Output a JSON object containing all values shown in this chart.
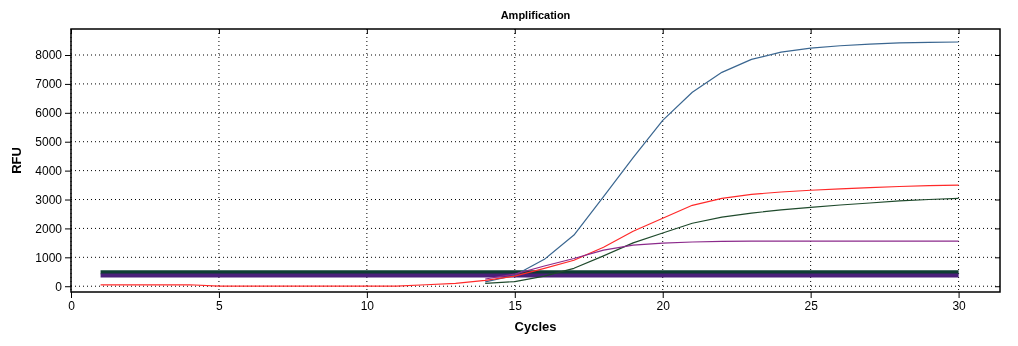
{
  "chart_data": {
    "type": "line",
    "title": "Amplification",
    "xlabel": "Cycles",
    "ylabel": "RFU",
    "x": [
      1,
      2,
      3,
      4,
      5,
      6,
      7,
      8,
      9,
      10,
      11,
      12,
      13,
      14,
      15,
      16,
      17,
      18,
      19,
      20,
      21,
      22,
      23,
      24,
      25,
      26,
      27,
      28,
      29,
      30
    ],
    "xlim": [
      0,
      31.4
    ],
    "ylim": [
      -200,
      8900
    ],
    "xticks": [
      0,
      5,
      10,
      15,
      20,
      25,
      30
    ],
    "yticks": [
      0,
      1000,
      2000,
      3000,
      4000,
      5000,
      6000,
      7000,
      8000
    ],
    "grid": true,
    "marker": "none",
    "line_style": "solid",
    "series": [
      {
        "color": "#3a6690",
        "values": [
          null,
          null,
          null,
          null,
          null,
          null,
          null,
          null,
          null,
          null,
          null,
          null,
          null,
          150,
          380,
          930,
          1770,
          3100,
          4450,
          5740,
          6710,
          7400,
          7850,
          8100,
          8240,
          8320,
          8380,
          8420,
          8440,
          8450
        ]
      },
      {
        "color": "#ff2a2a",
        "values": [
          50,
          50,
          50,
          50,
          0,
          0,
          0,
          0,
          0,
          0,
          0,
          50,
          100,
          200,
          350,
          620,
          900,
          1350,
          1900,
          2350,
          2800,
          3040,
          3180,
          3260,
          3320,
          3370,
          3410,
          3450,
          3480,
          3500
        ]
      },
      {
        "color": "#1f4a2c",
        "values": [
          null,
          null,
          null,
          null,
          null,
          null,
          null,
          null,
          null,
          null,
          null,
          null,
          null,
          100,
          160,
          350,
          620,
          1050,
          1500,
          1840,
          2180,
          2390,
          2530,
          2640,
          2730,
          2810,
          2880,
          2950,
          3000,
          3040
        ]
      },
      {
        "color": "#8b2a8b",
        "values": [
          null,
          null,
          null,
          null,
          null,
          null,
          null,
          null,
          null,
          null,
          null,
          null,
          null,
          250,
          420,
          700,
          960,
          1250,
          1420,
          1490,
          1530,
          1550,
          1560,
          1560,
          1560,
          1560,
          1560,
          1560,
          1560,
          1560
        ]
      }
    ],
    "ref_lines": [
      {
        "axis": "y",
        "value": 480,
        "color": "#0f3d33"
      },
      {
        "axis": "y",
        "value": 370,
        "color": "#4b1f7a"
      }
    ]
  }
}
